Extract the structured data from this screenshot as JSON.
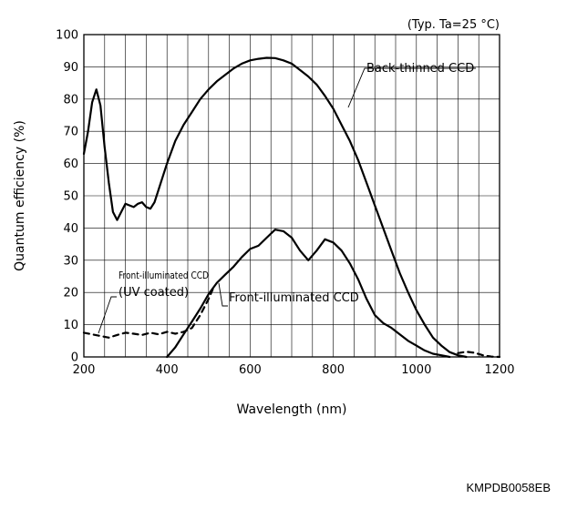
{
  "figure_code": "KMPDB0058EB",
  "chart_data": {
    "type": "line",
    "note": "(Typ. Ta=25 °C)",
    "xlabel": "Wavelength (nm)",
    "ylabel": "Quantum efficiency (%)",
    "xlim": [
      200,
      1200
    ],
    "ylim": [
      0,
      100
    ],
    "xticks": [
      200,
      400,
      600,
      800,
      1000,
      1200
    ],
    "yticks": [
      0,
      10,
      20,
      30,
      40,
      50,
      60,
      70,
      80,
      90,
      100
    ],
    "grid": true,
    "series": [
      {
        "name": "Back-thinned CCD",
        "style": "solid",
        "points": [
          [
            200,
            63
          ],
          [
            210,
            70
          ],
          [
            220,
            79
          ],
          [
            230,
            83
          ],
          [
            240,
            78
          ],
          [
            250,
            65
          ],
          [
            260,
            54
          ],
          [
            270,
            45
          ],
          [
            280,
            42.5
          ],
          [
            290,
            45
          ],
          [
            300,
            47.5
          ],
          [
            310,
            47
          ],
          [
            320,
            46.5
          ],
          [
            330,
            47.5
          ],
          [
            340,
            48
          ],
          [
            350,
            46.5
          ],
          [
            360,
            46
          ],
          [
            370,
            48
          ],
          [
            380,
            52
          ],
          [
            390,
            56
          ],
          [
            400,
            60
          ],
          [
            420,
            67
          ],
          [
            440,
            72
          ],
          [
            460,
            76
          ],
          [
            480,
            80
          ],
          [
            500,
            83
          ],
          [
            520,
            85.5
          ],
          [
            540,
            87.5
          ],
          [
            560,
            89.5
          ],
          [
            580,
            91
          ],
          [
            600,
            92
          ],
          [
            620,
            92.5
          ],
          [
            640,
            92.8
          ],
          [
            660,
            92.7
          ],
          [
            680,
            92
          ],
          [
            700,
            91
          ],
          [
            720,
            89
          ],
          [
            740,
            87
          ],
          [
            760,
            84.5
          ],
          [
            780,
            81
          ],
          [
            800,
            77
          ],
          [
            820,
            72
          ],
          [
            840,
            67
          ],
          [
            860,
            61
          ],
          [
            880,
            54
          ],
          [
            900,
            47
          ],
          [
            920,
            40
          ],
          [
            940,
            33
          ],
          [
            960,
            26
          ],
          [
            980,
            20
          ],
          [
            1000,
            14.5
          ],
          [
            1020,
            10
          ],
          [
            1040,
            6
          ],
          [
            1060,
            3.5
          ],
          [
            1080,
            1.5
          ],
          [
            1100,
            0.5
          ],
          [
            1120,
            0
          ]
        ]
      },
      {
        "name": "Front-illuminated CCD",
        "style": "solid",
        "points": [
          [
            400,
            0
          ],
          [
            420,
            3
          ],
          [
            440,
            7
          ],
          [
            460,
            11
          ],
          [
            480,
            15
          ],
          [
            500,
            19.5
          ],
          [
            520,
            23
          ],
          [
            540,
            25.5
          ],
          [
            560,
            28
          ],
          [
            580,
            31
          ],
          [
            600,
            33.5
          ],
          [
            620,
            34.5
          ],
          [
            640,
            37
          ],
          [
            660,
            39.5
          ],
          [
            680,
            39
          ],
          [
            700,
            37
          ],
          [
            720,
            33
          ],
          [
            740,
            30
          ],
          [
            760,
            33
          ],
          [
            780,
            36.5
          ],
          [
            800,
            35.5
          ],
          [
            820,
            33
          ],
          [
            840,
            29
          ],
          [
            860,
            24
          ],
          [
            880,
            18
          ],
          [
            900,
            13
          ],
          [
            920,
            10.5
          ],
          [
            940,
            9
          ],
          [
            960,
            7
          ],
          [
            980,
            5
          ],
          [
            1000,
            3.5
          ],
          [
            1020,
            2
          ],
          [
            1040,
            1
          ],
          [
            1060,
            0.5
          ],
          [
            1080,
            0
          ]
        ]
      },
      {
        "name": "Front-illuminated CCD (UV coated)",
        "style": "dashed",
        "points": [
          [
            200,
            7.5
          ],
          [
            220,
            7
          ],
          [
            240,
            6.5
          ],
          [
            260,
            6
          ],
          [
            280,
            6.8
          ],
          [
            300,
            7.5
          ],
          [
            320,
            7.2
          ],
          [
            340,
            6.8
          ],
          [
            360,
            7.5
          ],
          [
            380,
            7
          ],
          [
            400,
            7.8
          ],
          [
            420,
            7.2
          ],
          [
            440,
            7.8
          ],
          [
            460,
            9
          ],
          [
            480,
            13
          ],
          [
            500,
            18
          ],
          [
            510,
            21
          ]
        ]
      }
    ],
    "tail_segments": [
      {
        "style": "dashed",
        "points": [
          [
            1100,
            1.2
          ],
          [
            1120,
            1.6
          ],
          [
            1140,
            1.3
          ],
          [
            1160,
            0.5
          ],
          [
            1180,
            0.1
          ],
          [
            1200,
            0
          ]
        ]
      }
    ],
    "annotations": [
      {
        "label_key": "back",
        "text": "Back-thinned CCD"
      },
      {
        "label_key": "front",
        "text": "Front-illuminated CCD"
      },
      {
        "label_key": "uv1",
        "text": "Front-illuminated CCD"
      },
      {
        "label_key": "uv2",
        "text": "(UV coated)"
      }
    ]
  }
}
